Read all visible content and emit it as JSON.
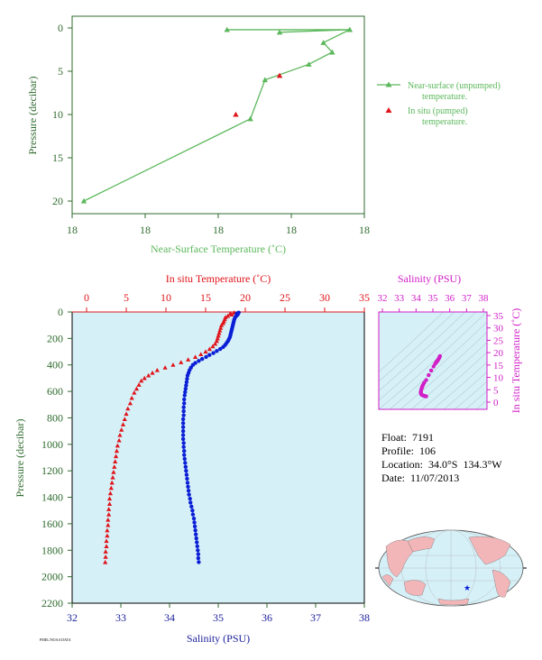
{
  "colors": {
    "green": "#5cb85c",
    "red": "#e0141b",
    "blue": "#0b1fd6",
    "magenta": "#d11ec7",
    "plot_bg": "#d6f0f8",
    "axis_green": "#2f6b2f",
    "axis_blue": "#1b1f9a",
    "land": "#f3b6b8",
    "ocean": "#d6f0f8"
  },
  "info": {
    "float": "Float:  7191",
    "profile": "Profile:  106",
    "location": "Location:  34.0°S  134.3°W",
    "date": "Date:  11/07/2013"
  },
  "footer_text": "PMEL/NOAA DATA",
  "chart_data": [
    {
      "type": "line",
      "xlabel": "Near-Surface Temperature (˚C)",
      "ylabel": "Pressure (decibar)",
      "x_tick_labels": [
        "18",
        "18",
        "18",
        "18",
        "18"
      ],
      "y_ticks": [
        0,
        5,
        10,
        15,
        20
      ],
      "ylim": [
        0,
        22
      ],
      "legend_placement": "right",
      "series": [
        {
          "name": "Near-surface (unpumped) temperature.",
          "marker": "triangle",
          "color": "green",
          "points": [
            [
              18.55,
              0.2
            ],
            [
              18.97,
              0.2
            ],
            [
              18.73,
              0.5
            ],
            [
              18.97,
              0.2
            ],
            [
              18.88,
              1.7
            ],
            [
              18.91,
              2.8
            ],
            [
              18.83,
              4.2
            ],
            [
              18.68,
              6.0
            ],
            [
              18.63,
              10.5
            ],
            [
              18.06,
              20.0
            ]
          ]
        },
        {
          "name": "In situ (pumped) temperature.",
          "marker": "triangle",
          "color": "red",
          "points": [
            [
              18.58,
              10.0
            ],
            [
              18.73,
              5.5
            ]
          ]
        }
      ]
    },
    {
      "type": "scatter",
      "xlabel_top": "In situ Temperature (˚C)",
      "xlabel_bottom": "Salinity (PSU)",
      "ylabel": "Pressure (decibar)",
      "top_ticks": [
        0,
        5,
        10,
        15,
        20,
        25,
        30,
        35
      ],
      "bottom_ticks": [
        32,
        33,
        34,
        35,
        36,
        37,
        38
      ],
      "y_ticks": [
        0,
        200,
        400,
        600,
        800,
        1000,
        1200,
        1400,
        1600,
        1800,
        2000,
        2200
      ],
      "ylim": [
        2200,
        0
      ],
      "temperature_pressure": [
        [
          18.6,
          5
        ],
        [
          18.1,
          12
        ],
        [
          18.3,
          20
        ],
        [
          17.8,
          30
        ],
        [
          17.5,
          40
        ],
        [
          17.4,
          55
        ],
        [
          17.3,
          70
        ],
        [
          17.2,
          85
        ],
        [
          17.0,
          100
        ],
        [
          16.9,
          120
        ],
        [
          16.8,
          140
        ],
        [
          16.7,
          160
        ],
        [
          16.6,
          180
        ],
        [
          16.5,
          200
        ],
        [
          16.4,
          220
        ],
        [
          16.2,
          240
        ],
        [
          15.9,
          260
        ],
        [
          15.5,
          280
        ],
        [
          15.0,
          300
        ],
        [
          14.4,
          320
        ],
        [
          13.7,
          340
        ],
        [
          12.8,
          360
        ],
        [
          11.9,
          380
        ],
        [
          10.9,
          400
        ],
        [
          9.9,
          420
        ],
        [
          8.9,
          440
        ],
        [
          8.3,
          460
        ],
        [
          7.8,
          480
        ],
        [
          7.3,
          500
        ],
        [
          6.9,
          520
        ],
        [
          6.6,
          550
        ],
        [
          6.3,
          580
        ],
        [
          6.0,
          610
        ],
        [
          5.7,
          650
        ],
        [
          5.5,
          690
        ],
        [
          5.2,
          730
        ],
        [
          5.0,
          770
        ],
        [
          4.8,
          810
        ],
        [
          4.6,
          850
        ],
        [
          4.4,
          890
        ],
        [
          4.2,
          930
        ],
        [
          4.1,
          970
        ],
        [
          3.9,
          1010
        ],
        [
          3.8,
          1050
        ],
        [
          3.7,
          1090
        ],
        [
          3.6,
          1130
        ],
        [
          3.5,
          1170
        ],
        [
          3.4,
          1210
        ],
        [
          3.3,
          1250
        ],
        [
          3.2,
          1290
        ],
        [
          3.1,
          1330
        ],
        [
          3.0,
          1370
        ],
        [
          2.9,
          1410
        ],
        [
          2.9,
          1450
        ],
        [
          2.8,
          1490
        ],
        [
          2.8,
          1530
        ],
        [
          2.7,
          1570
        ],
        [
          2.7,
          1610
        ],
        [
          2.6,
          1650
        ],
        [
          2.6,
          1690
        ],
        [
          2.5,
          1730
        ],
        [
          2.5,
          1770
        ],
        [
          2.4,
          1810
        ],
        [
          2.4,
          1850
        ],
        [
          2.35,
          1890
        ]
      ],
      "salinity_pressure": [
        [
          35.42,
          5
        ],
        [
          35.38,
          12
        ],
        [
          35.4,
          20
        ],
        [
          35.37,
          30
        ],
        [
          35.35,
          40
        ],
        [
          35.33,
          55
        ],
        [
          35.32,
          70
        ],
        [
          35.31,
          85
        ],
        [
          35.3,
          100
        ],
        [
          35.29,
          115
        ],
        [
          35.28,
          130
        ],
        [
          35.27,
          145
        ],
        [
          35.26,
          160
        ],
        [
          35.25,
          175
        ],
        [
          35.24,
          190
        ],
        [
          35.22,
          205
        ],
        [
          35.2,
          220
        ],
        [
          35.17,
          235
        ],
        [
          35.14,
          250
        ],
        [
          35.1,
          265
        ],
        [
          35.04,
          280
        ],
        [
          34.97,
          295
        ],
        [
          34.9,
          310
        ],
        [
          34.82,
          325
        ],
        [
          34.75,
          340
        ],
        [
          34.67,
          355
        ],
        [
          34.6,
          370
        ],
        [
          34.53,
          385
        ],
        [
          34.48,
          400
        ],
        [
          34.44,
          420
        ],
        [
          34.41,
          440
        ],
        [
          34.39,
          460
        ],
        [
          34.37,
          480
        ],
        [
          34.36,
          505
        ],
        [
          34.35,
          530
        ],
        [
          34.34,
          555
        ],
        [
          34.33,
          580
        ],
        [
          34.32,
          605
        ],
        [
          34.31,
          630
        ],
        [
          34.3,
          660
        ],
        [
          34.3,
          690
        ],
        [
          34.29,
          720
        ],
        [
          34.29,
          750
        ],
        [
          34.29,
          780
        ],
        [
          34.28,
          810
        ],
        [
          34.28,
          840
        ],
        [
          34.28,
          870
        ],
        [
          34.28,
          900
        ],
        [
          34.28,
          930
        ],
        [
          34.28,
          960
        ],
        [
          34.29,
          990
        ],
        [
          34.29,
          1020
        ],
        [
          34.3,
          1050
        ],
        [
          34.3,
          1080
        ],
        [
          34.31,
          1110
        ],
        [
          34.32,
          1140
        ],
        [
          34.33,
          1170
        ],
        [
          34.34,
          1200
        ],
        [
          34.35,
          1230
        ],
        [
          34.36,
          1260
        ],
        [
          34.37,
          1290
        ],
        [
          34.38,
          1320
        ],
        [
          34.39,
          1350
        ],
        [
          34.4,
          1380
        ],
        [
          34.42,
          1410
        ],
        [
          34.43,
          1440
        ],
        [
          34.45,
          1470
        ],
        [
          34.47,
          1500
        ],
        [
          34.48,
          1530
        ],
        [
          34.5,
          1560
        ],
        [
          34.51,
          1590
        ],
        [
          34.52,
          1620
        ],
        [
          34.53,
          1650
        ],
        [
          34.54,
          1680
        ],
        [
          34.55,
          1710
        ],
        [
          34.56,
          1740
        ],
        [
          34.57,
          1770
        ],
        [
          34.58,
          1800
        ],
        [
          34.59,
          1830
        ],
        [
          34.59,
          1860
        ],
        [
          34.6,
          1890
        ]
      ]
    },
    {
      "type": "scatter",
      "xlabel_top": "Salinity (PSU)",
      "ylabel_right": "In situ Temperature (˚C)",
      "top_ticks": [
        32,
        33,
        34,
        35,
        36,
        37,
        38
      ],
      "right_ticks": [
        0,
        5,
        10,
        15,
        20,
        25,
        30,
        35
      ],
      "xlim": [
        32,
        38
      ],
      "ylim": [
        -2,
        36
      ],
      "ts_points": [
        [
          35.42,
          18.6
        ],
        [
          35.4,
          18.3
        ],
        [
          35.37,
          17.8
        ],
        [
          35.33,
          17.4
        ],
        [
          35.3,
          17.0
        ],
        [
          35.27,
          16.7
        ],
        [
          35.24,
          16.4
        ],
        [
          35.2,
          16.2
        ],
        [
          35.14,
          15.5
        ],
        [
          35.04,
          14.4
        ],
        [
          34.9,
          12.8
        ],
        [
          34.75,
          10.9
        ],
        [
          34.6,
          8.9
        ],
        [
          34.48,
          7.8
        ],
        [
          34.41,
          6.9
        ],
        [
          34.37,
          6.3
        ],
        [
          34.34,
          5.7
        ],
        [
          34.31,
          5.0
        ],
        [
          34.29,
          4.4
        ],
        [
          34.28,
          4.0
        ],
        [
          34.29,
          3.6
        ],
        [
          34.31,
          3.2
        ],
        [
          34.35,
          2.9
        ],
        [
          34.42,
          2.7
        ],
        [
          34.5,
          2.5
        ],
        [
          34.56,
          2.4
        ],
        [
          34.6,
          2.35
        ]
      ]
    }
  ],
  "map": {
    "float_marker": "star"
  }
}
